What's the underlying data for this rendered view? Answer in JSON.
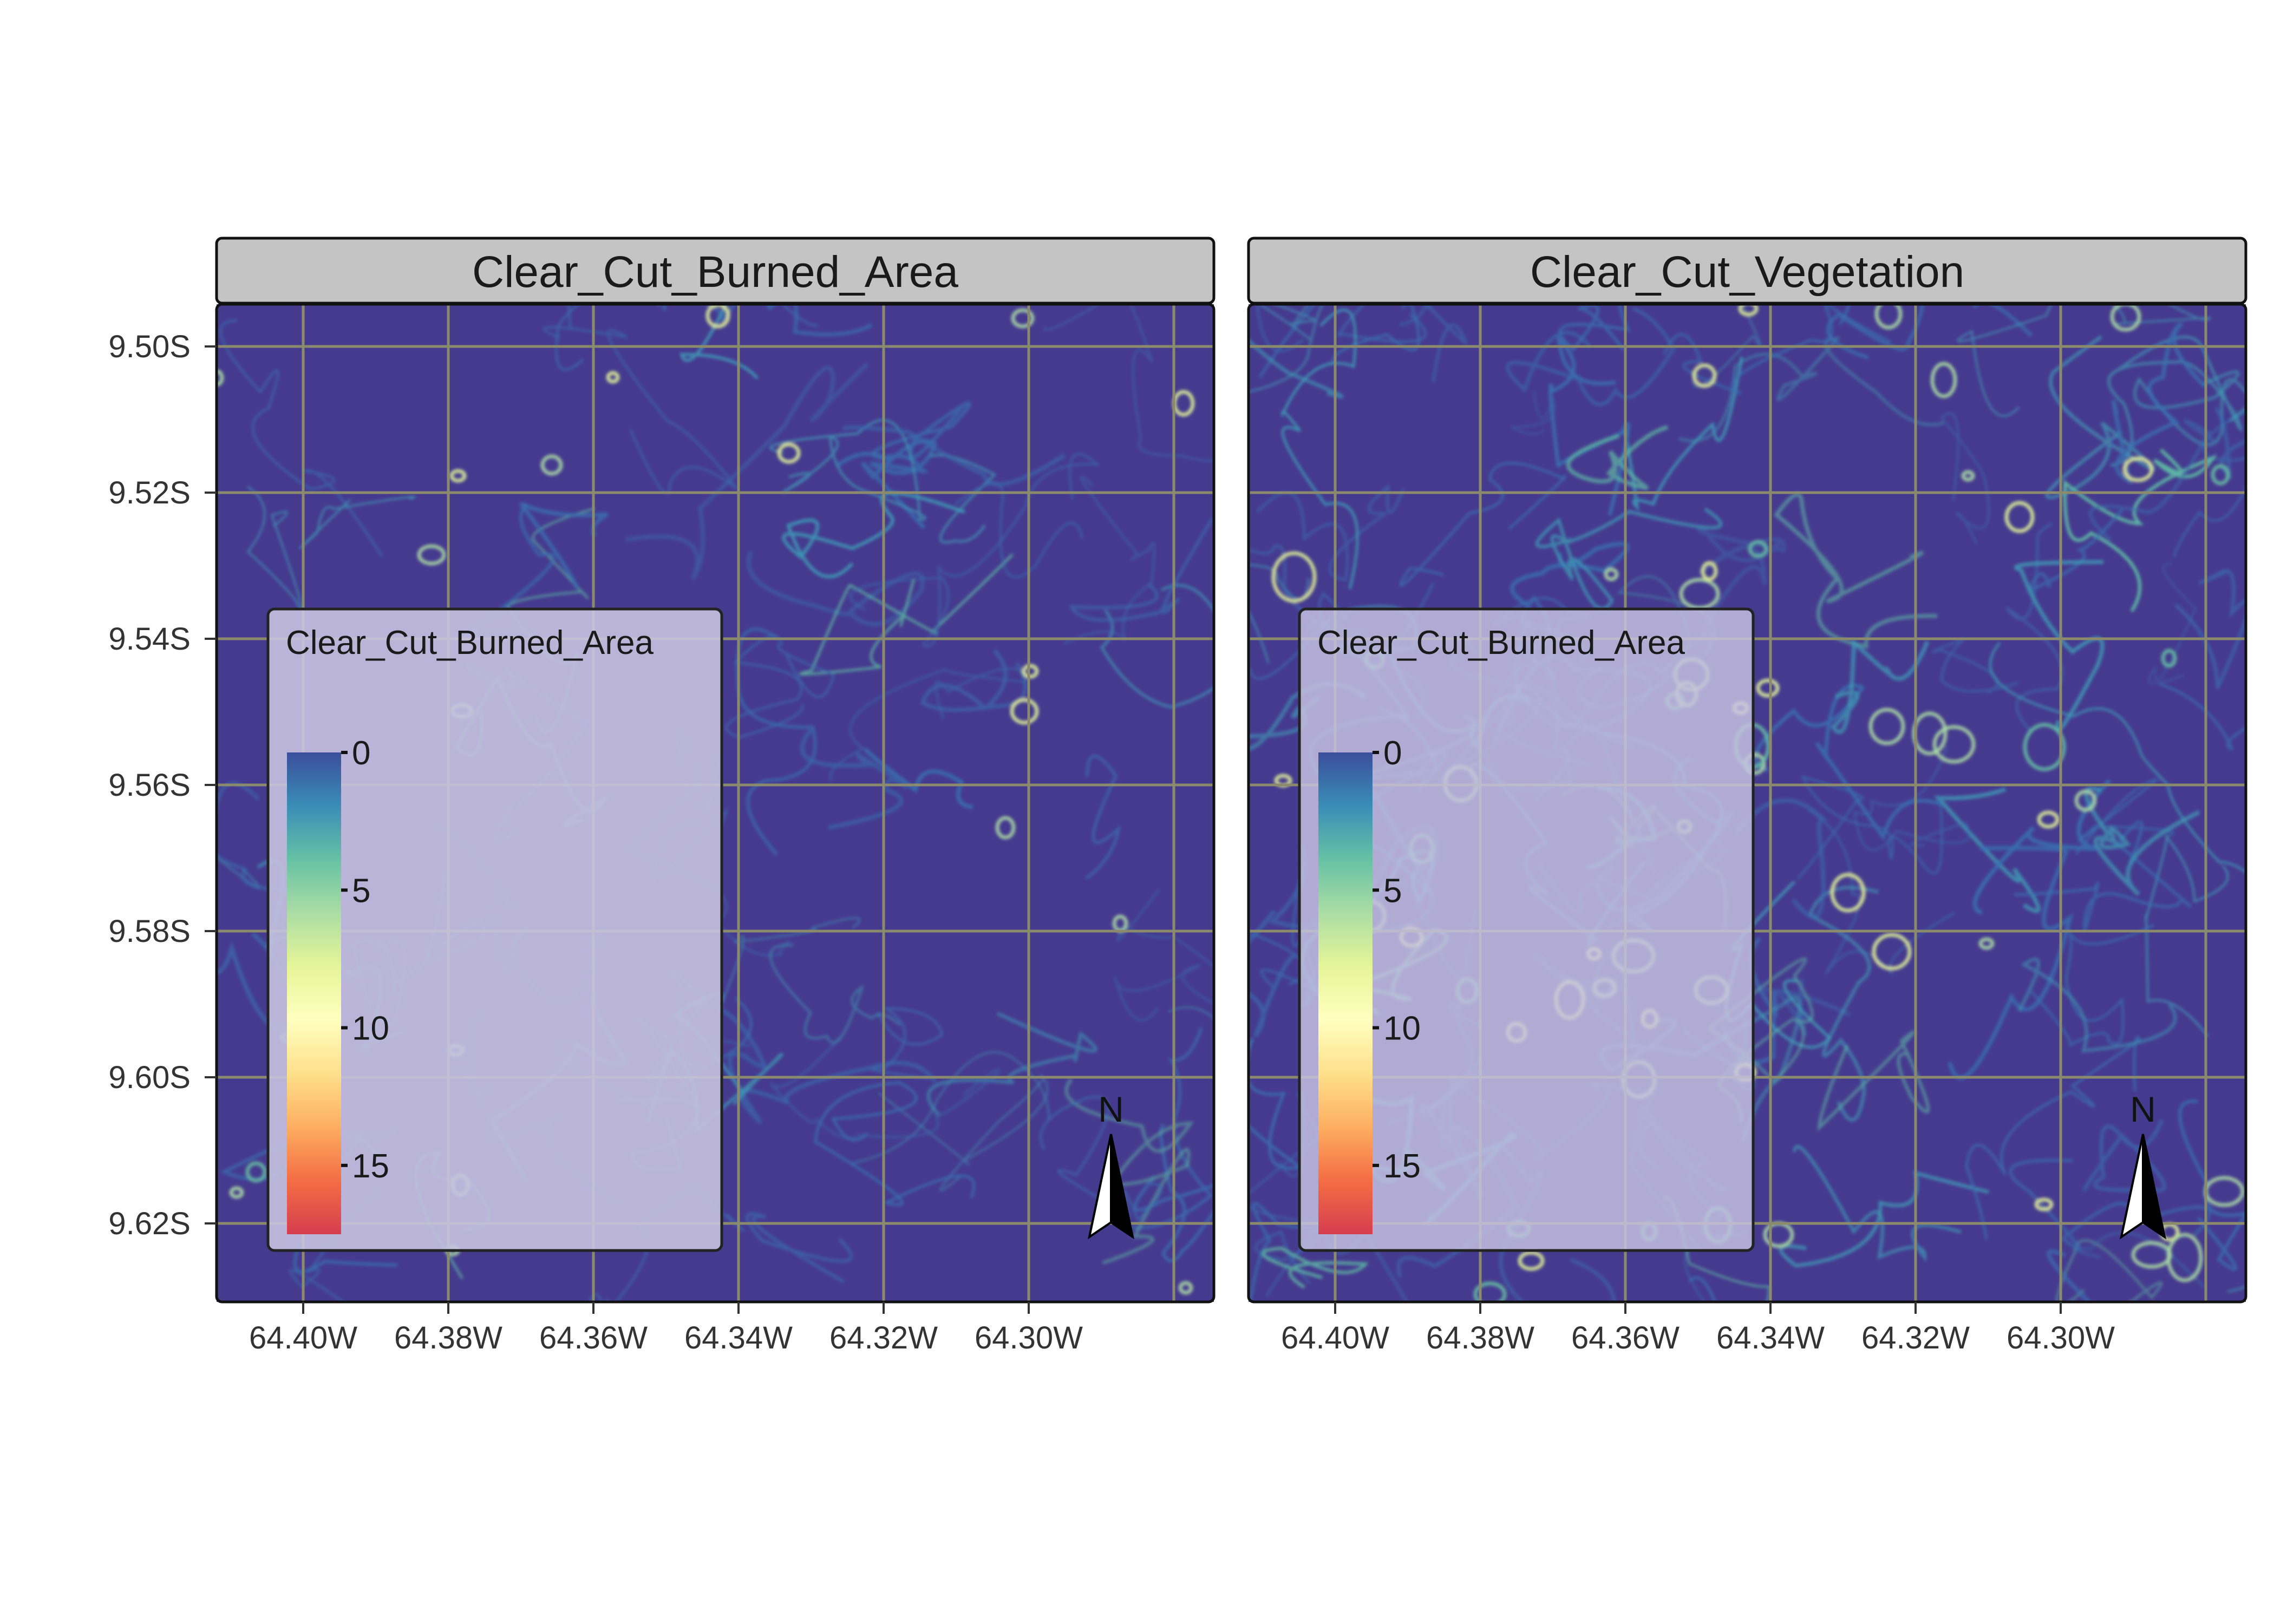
{
  "panels": [
    {
      "strip": "Clear_Cut_Burned_Area",
      "variant": "burned"
    },
    {
      "strip": "Clear_Cut_Vegetation",
      "variant": "vegetation"
    }
  ],
  "axes": {
    "x_ticks": [
      "64.40W",
      "64.38W",
      "64.36W",
      "64.34W",
      "64.32W",
      "64.30W"
    ],
    "y_ticks": [
      "9.50S",
      "9.52S",
      "9.54S",
      "9.56S",
      "9.58S",
      "9.60S",
      "9.62S"
    ]
  },
  "legend": {
    "title": "Clear_Cut_Burned_Area",
    "breaks": [
      "0",
      "5",
      "10",
      "15"
    ],
    "colors": [
      "#3B4E9B",
      "#3A8DB7",
      "#66C2A5",
      "#ABDDA4",
      "#E6F598",
      "#FFFFBF",
      "#FEE08B",
      "#FDAE61",
      "#F46D43",
      "#D53E4F"
    ]
  },
  "north_arrow": {
    "label": "N"
  },
  "colors": {
    "raster_base": "#453A8E",
    "grid": "#8C8A6C",
    "strip_bg": "#C4C4C4",
    "legend_bg": "#C9C5E3"
  }
}
